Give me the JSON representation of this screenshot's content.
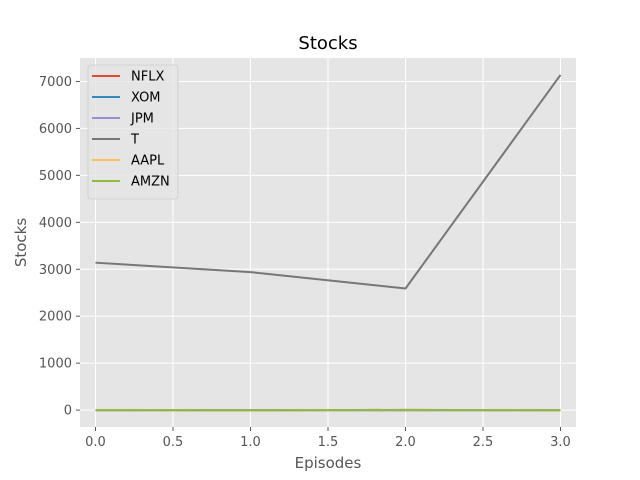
{
  "chart_data": {
    "type": "line",
    "title": "Stocks",
    "xlabel": "Episodes",
    "ylabel": "Stocks",
    "x": [
      0,
      1,
      2,
      3
    ],
    "xlim": [
      -0.1,
      3.1
    ],
    "ylim": [
      -360,
      7500
    ],
    "xticks": [
      0.0,
      0.5,
      1.0,
      1.5,
      2.0,
      2.5,
      3.0
    ],
    "xtick_labels": [
      "0.0",
      "0.5",
      "1.0",
      "1.5",
      "2.0",
      "2.5",
      "3.0"
    ],
    "yticks": [
      0,
      1000,
      2000,
      3000,
      4000,
      5000,
      6000,
      7000
    ],
    "ytick_labels": [
      "0",
      "1000",
      "2000",
      "3000",
      "4000",
      "5000",
      "6000",
      "7000"
    ],
    "grid": true,
    "legend_position": "top-left",
    "series": [
      {
        "name": "NFLX",
        "color": "#E24A33",
        "values": [
          0,
          0,
          0,
          0
        ]
      },
      {
        "name": "XOM",
        "color": "#348ABD",
        "values": [
          0,
          0,
          0,
          0
        ]
      },
      {
        "name": "JPM",
        "color": "#988ED5",
        "values": [
          0,
          0,
          0,
          0
        ]
      },
      {
        "name": "T",
        "color": "#777777",
        "values": [
          3140,
          2940,
          2590,
          7140
        ]
      },
      {
        "name": "AAPL",
        "color": "#FBC15E",
        "values": [
          0,
          -5,
          5,
          -5
        ]
      },
      {
        "name": "AMZN",
        "color": "#8EBA42",
        "values": [
          0,
          -5,
          5,
          -5
        ]
      }
    ],
    "background_color": "#E5E5E5",
    "grid_color": "#FFFFFF"
  }
}
